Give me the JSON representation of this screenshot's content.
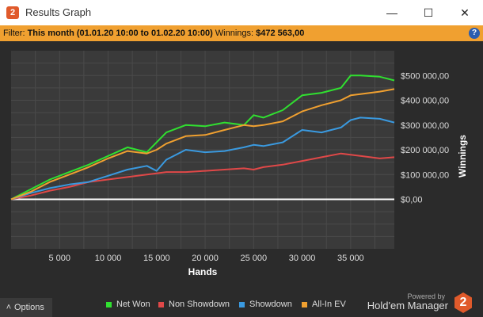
{
  "window": {
    "title": "Results Graph",
    "minimize": "—",
    "maximize": "☐",
    "close": "✕"
  },
  "filter": {
    "label": "Filter: ",
    "period": "This month (01.01.20 10:00 to 01.02.20 10:00)",
    "winnings_label": "  Winnings: ",
    "winnings_value": "$472 563,00",
    "help": "?"
  },
  "footer": {
    "options": "Options",
    "powered_by": "Powered by",
    "brand": "Hold'em Manager",
    "brand_mark": "2",
    "legend": [
      {
        "label": "Net Won",
        "color": "#30e030"
      },
      {
        "label": "Non Showdown",
        "color": "#e04848"
      },
      {
        "label": "Showdown",
        "color": "#3a9ae0"
      },
      {
        "label": "All-In EV",
        "color": "#f0a030"
      }
    ]
  },
  "chart_data": {
    "type": "line",
    "xlabel": "Hands",
    "ylabel": "Winnings",
    "xlim": [
      0,
      39500
    ],
    "ylim": [
      -200000,
      600000
    ],
    "x_ticks": [
      5000,
      10000,
      15000,
      20000,
      25000,
      30000,
      35000
    ],
    "x_tick_labels": [
      "5 000",
      "10 000",
      "15 000",
      "20 000",
      "25 000",
      "30 000",
      "35 000"
    ],
    "y_ticks": [
      0,
      100000,
      200000,
      300000,
      400000,
      500000
    ],
    "y_tick_labels": [
      "$0,00",
      "$100 000,00",
      "$200 000,00",
      "$300 000,00",
      "$400 000,00",
      "$500 000,00"
    ],
    "grid": true,
    "x": [
      0,
      2000,
      4000,
      6000,
      8000,
      10000,
      12000,
      14000,
      15000,
      16000,
      18000,
      20000,
      22000,
      24000,
      25000,
      26000,
      28000,
      30000,
      32000,
      34000,
      35000,
      36000,
      38000,
      39500
    ],
    "series": [
      {
        "name": "Net Won",
        "color": "#30e030",
        "values": [
          0,
          40000,
          80000,
          110000,
          140000,
          175000,
          210000,
          190000,
          230000,
          270000,
          300000,
          295000,
          310000,
          300000,
          340000,
          330000,
          360000,
          420000,
          430000,
          450000,
          500000,
          500000,
          495000,
          480000
        ]
      },
      {
        "name": "Non Showdown",
        "color": "#e04848",
        "values": [
          0,
          15000,
          35000,
          50000,
          70000,
          80000,
          90000,
          100000,
          105000,
          110000,
          110000,
          115000,
          120000,
          125000,
          120000,
          130000,
          140000,
          155000,
          170000,
          185000,
          180000,
          175000,
          165000,
          170000
        ]
      },
      {
        "name": "Showdown",
        "color": "#3a9ae0",
        "values": [
          0,
          25000,
          45000,
          60000,
          70000,
          95000,
          120000,
          135000,
          115000,
          160000,
          200000,
          190000,
          195000,
          210000,
          220000,
          215000,
          230000,
          280000,
          270000,
          290000,
          320000,
          330000,
          325000,
          310000
        ]
      },
      {
        "name": "All-In EV",
        "color": "#f0a030",
        "values": [
          0,
          30000,
          70000,
          100000,
          130000,
          165000,
          195000,
          185000,
          200000,
          225000,
          255000,
          260000,
          280000,
          300000,
          295000,
          300000,
          315000,
          355000,
          380000,
          400000,
          420000,
          425000,
          435000,
          445000
        ]
      }
    ]
  }
}
